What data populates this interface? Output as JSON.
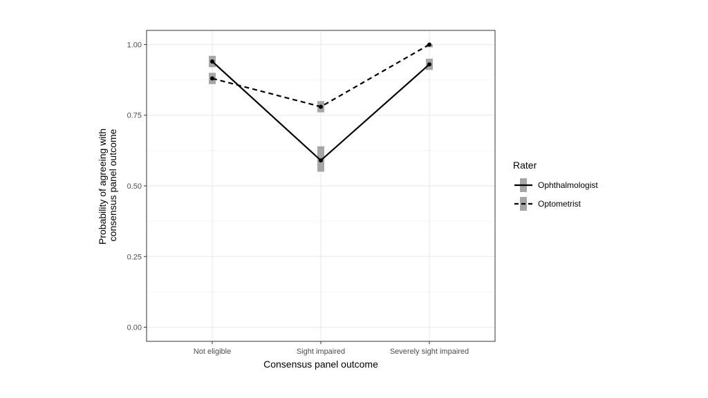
{
  "chart_data": {
    "type": "line",
    "categories": [
      "Not eligible",
      "Sight impaired",
      "Severely sight impaired"
    ],
    "xlabel": "Consensus panel outcome",
    "ylabel_lines": [
      "Probability of agreeing with",
      "consensus panel outcome"
    ],
    "ylim": [
      -0.05,
      1.05
    ],
    "yticks": [
      "0.00",
      "0.25",
      "0.50",
      "0.75",
      "1.00"
    ],
    "ytick_values": [
      0,
      0.25,
      0.5,
      0.75,
      1.0
    ],
    "grid": true,
    "legend_position": "right",
    "legend_title": "Rater",
    "series": [
      {
        "name": "Ophthalmologist",
        "line_style": "solid",
        "color": "#000000",
        "values": [
          0.94,
          0.59,
          0.93
        ],
        "lower": [
          0.92,
          0.55,
          0.91
        ],
        "upper": [
          0.96,
          0.64,
          0.95
        ]
      },
      {
        "name": "Optometrist",
        "line_style": "dashed",
        "color": "#000000",
        "values": [
          0.88,
          0.78,
          1.0
        ],
        "lower": [
          0.86,
          0.76,
          0.995
        ],
        "upper": [
          0.9,
          0.8,
          1.0
        ]
      }
    ],
    "errorbar_color": "#a6a6a6",
    "grid_color": "#ebebeb",
    "panel_border_color": "#333333"
  }
}
